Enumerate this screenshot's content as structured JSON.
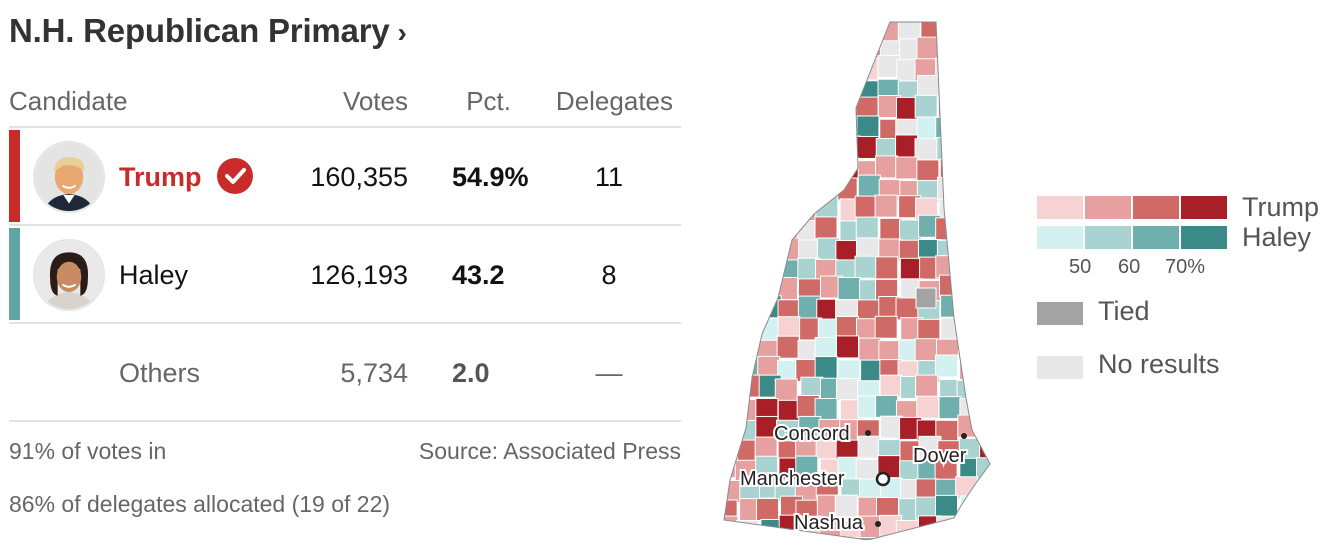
{
  "title": "N.H. Republican Primary",
  "title_chevron": "›",
  "headers": {
    "candidate": "Candidate",
    "votes": "Votes",
    "pct": "Pct.",
    "delegates": "Delegates"
  },
  "candidates": [
    {
      "name": "Trump",
      "votes": "160,355",
      "pct": "54.9%",
      "delegates": "11",
      "winner": true,
      "color": "#c92b2b"
    },
    {
      "name": "Haley",
      "votes": "126,193",
      "pct": "43.2",
      "delegates": "8",
      "winner": false,
      "color": "#5fa5a3"
    },
    {
      "name": "Others",
      "votes": "5,734",
      "pct": "2.0",
      "delegates": "—"
    }
  ],
  "footer": {
    "reporting": "91% of votes in",
    "source": "Source: Associated Press",
    "delegates_allocated": "86% of delegates allocated (19 of 22)"
  },
  "map": {
    "cities": [
      "Concord",
      "Dover",
      "Manchester",
      "Nashua"
    ]
  },
  "legend": {
    "trump_label": "Trump",
    "haley_label": "Haley",
    "ticks": [
      "50",
      "60",
      "70%"
    ],
    "tied_label": "Tied",
    "no_results_label": "No results",
    "trump_colors": [
      "#f6d2d3",
      "#e5a09f",
      "#d06a66",
      "#a91f27"
    ],
    "haley_colors": [
      "#d3f1f1",
      "#a8d3d1",
      "#6fb0ae",
      "#3b8a88"
    ],
    "tied_color": "#a3a3a3",
    "no_results_color": "#e8e8e8"
  }
}
